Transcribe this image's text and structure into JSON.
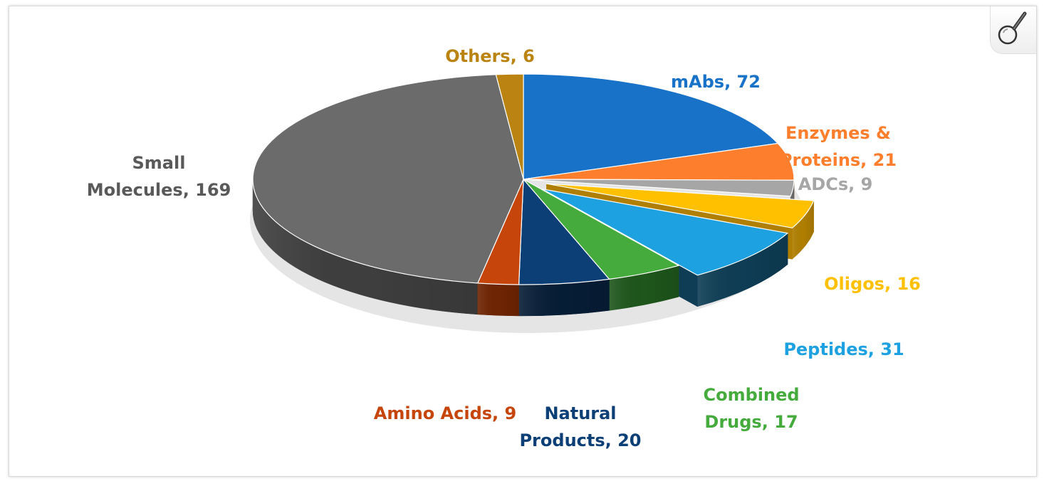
{
  "chart_data": {
    "type": "pie",
    "title": "",
    "slices": [
      {
        "label": "mAbs, 72",
        "name": "mAbs",
        "value": 72,
        "color": "#1872c8",
        "side": "#0b3f70",
        "exploded": false
      },
      {
        "label": "Enzymes & Proteins, 21",
        "name": "Enzymes & Proteins",
        "value": 21,
        "color": "#fd7f2d",
        "side": "#a84e10",
        "exploded": false
      },
      {
        "label": "ADCs, 9",
        "name": "ADCs",
        "value": 9,
        "color": "#a6a6a6",
        "side": "#6a6a6a",
        "exploded": false
      },
      {
        "label": "Oligos, 16",
        "name": "Oligos",
        "value": 16,
        "color": "#ffc000",
        "side": "#b07f00",
        "exploded": true
      },
      {
        "label": "Peptides, 31",
        "name": "Peptides",
        "value": 31,
        "color": "#1ea1e0",
        "side": "#0e3d55",
        "exploded": true
      },
      {
        "label": "Combined Drugs, 17",
        "name": "Combined Drugs",
        "value": 17,
        "color": "#45ab3c",
        "side": "#1e561b",
        "exploded": false
      },
      {
        "label": "Natural Products, 20",
        "name": "Natural Products",
        "value": 20,
        "color": "#0c3f76",
        "side": "#061d36",
        "exploded": false
      },
      {
        "label": "Amino Acids, 9",
        "name": "Amino Acids",
        "value": 9,
        "color": "#c6450a",
        "side": "#6e2503",
        "exploded": false
      },
      {
        "label": "Small Molecules, 169",
        "name": "Small Molecules",
        "value": 169,
        "color": "#6b6b6b",
        "side": "#3e3e3e",
        "exploded": false
      },
      {
        "label": "Others, 6",
        "name": "Others",
        "value": 6,
        "color": "#bb8412",
        "side": "#6e4c08",
        "exploded": false
      }
    ],
    "label_colors": [
      "#1872c8",
      "#fd7f2d",
      "#a6a6a6",
      "#ffc000",
      "#1ea1e0",
      "#45ab3c",
      "#0c3f76",
      "#c6450a",
      "#595959",
      "#bb8412"
    ],
    "legend": "none"
  },
  "zoom": {
    "icon": "magnifier-icon"
  }
}
